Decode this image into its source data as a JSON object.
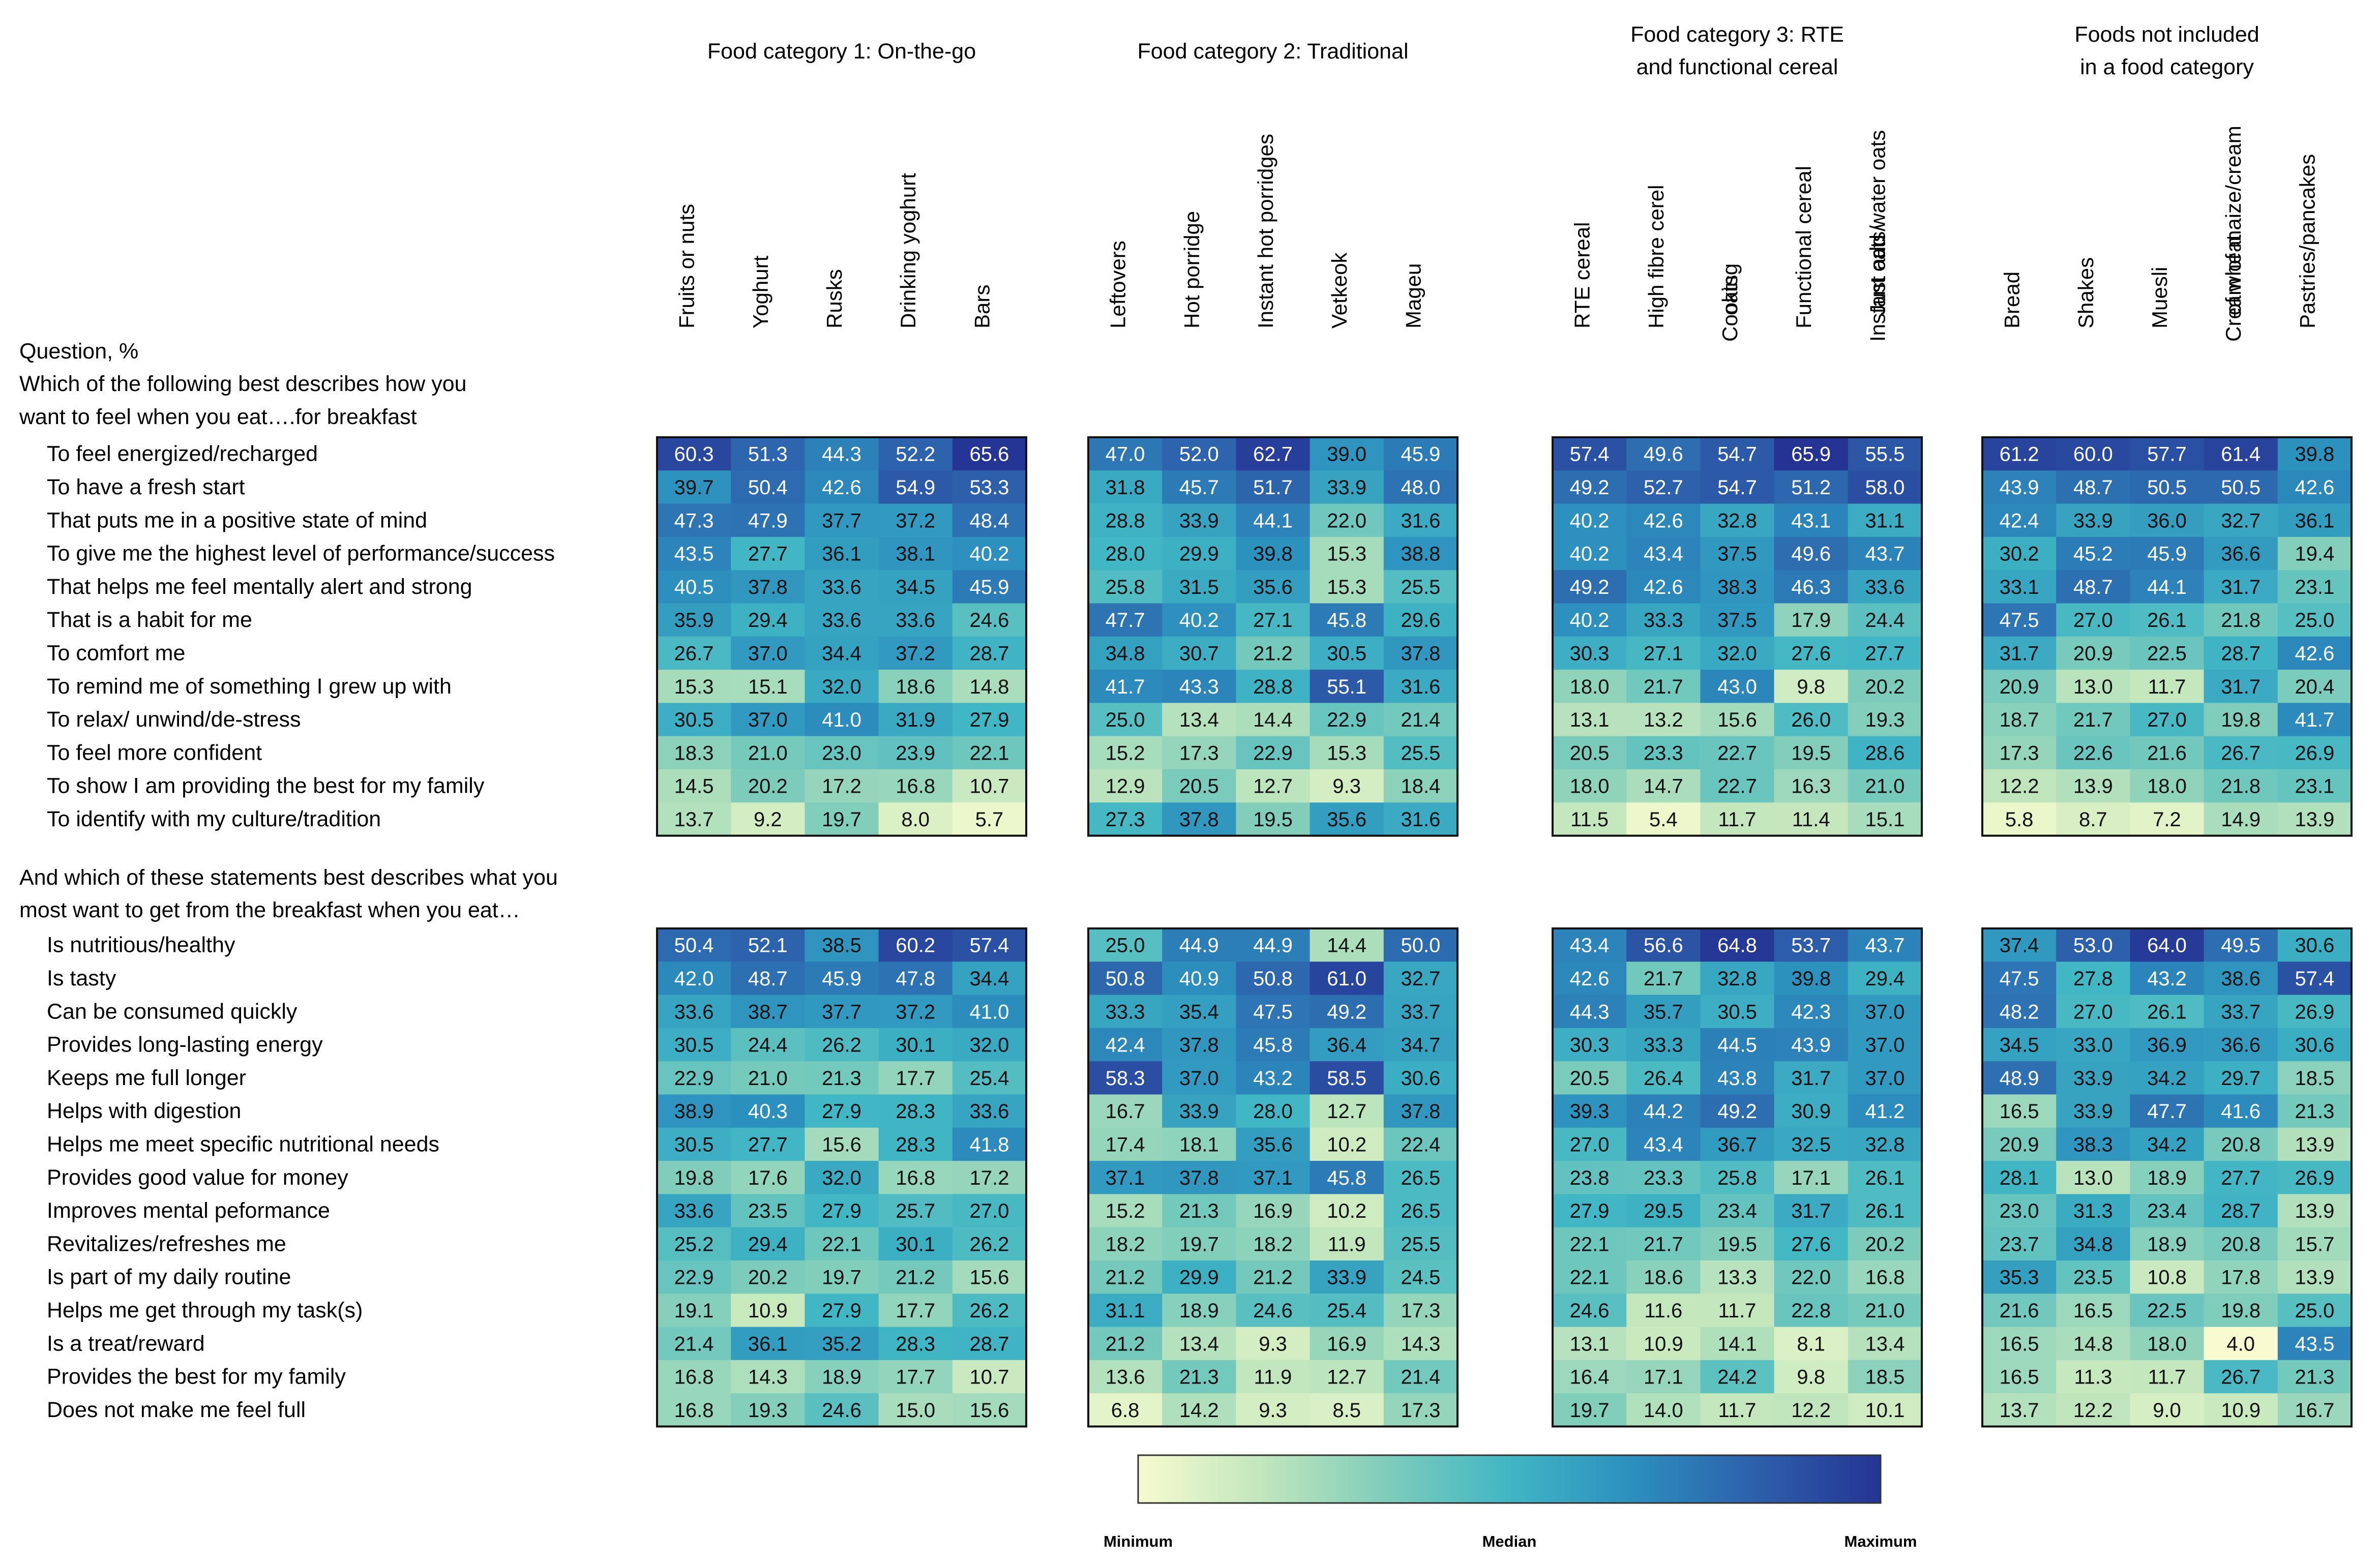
{
  "chart_data": {
    "type": "heatmap",
    "row_header": "Question, %",
    "groups": [
      {
        "label": "Food category 1: On-the-go",
        "columns": [
          "Fruits or nuts",
          "Yoghurt",
          "Rusks",
          "Drinking yoghurt",
          "Bars"
        ]
      },
      {
        "label": "Food category 2: Traditional",
        "columns": [
          "Leftovers",
          "Hot porridge",
          "Instant hot porridges",
          "Vetkeok",
          "Mageu"
        ]
      },
      {
        "label": "Food category 3: RTE and functional cereal",
        "columns": [
          "RTE cereal",
          "High fibre cerel",
          "Cooking oats",
          "Functional cereal",
          "Instant oats/ Just add  water oats"
        ]
      },
      {
        "label": "Foods not included in a food category",
        "columns": [
          "Bread",
          "Shakes",
          "Muesli",
          "Cream of maize/cream of wheat",
          "Pastries/pancakes"
        ]
      }
    ],
    "sections": [
      {
        "question": "Which of the following best describes how you want to feel when you eat….for breakfast",
        "rows": [
          {
            "label": "To feel energized/recharged",
            "values": [
              60.3,
              51.3,
              44.3,
              52.2,
              65.6,
              47.0,
              52.0,
              62.7,
              39.0,
              45.9,
              57.4,
              49.6,
              54.7,
              65.9,
              55.5,
              61.2,
              60.0,
              57.7,
              61.4,
              39.8
            ]
          },
          {
            "label": "To have a fresh start",
            "values": [
              39.7,
              50.4,
              42.6,
              54.9,
              53.3,
              31.8,
              45.7,
              51.7,
              33.9,
              48.0,
              49.2,
              52.7,
              54.7,
              51.2,
              58.0,
              43.9,
              48.7,
              50.5,
              50.5,
              42.6
            ]
          },
          {
            "label": "That puts me in a positive state of mind",
            "values": [
              47.3,
              47.9,
              37.7,
              37.2,
              48.4,
              28.8,
              33.9,
              44.1,
              22.0,
              31.6,
              40.2,
              42.6,
              32.8,
              43.1,
              31.1,
              42.4,
              33.9,
              36.0,
              32.7,
              36.1
            ]
          },
          {
            "label": "To give me the highest level of performance/success",
            "values": [
              43.5,
              27.7,
              36.1,
              38.1,
              40.2,
              28.0,
              29.9,
              39.8,
              15.3,
              38.8,
              40.2,
              43.4,
              37.5,
              49.6,
              43.7,
              30.2,
              45.2,
              45.9,
              36.6,
              19.4
            ]
          },
          {
            "label": "That helps me feel mentally alert and strong",
            "values": [
              40.5,
              37.8,
              33.6,
              34.5,
              45.9,
              25.8,
              31.5,
              35.6,
              15.3,
              25.5,
              49.2,
              42.6,
              38.3,
              46.3,
              33.6,
              33.1,
              48.7,
              44.1,
              31.7,
              23.1
            ]
          },
          {
            "label": "That is a habit for me",
            "values": [
              35.9,
              29.4,
              33.6,
              33.6,
              24.6,
              47.7,
              40.2,
              27.1,
              45.8,
              29.6,
              40.2,
              33.3,
              37.5,
              17.9,
              24.4,
              47.5,
              27.0,
              26.1,
              21.8,
              25.0
            ]
          },
          {
            "label": "To comfort me",
            "values": [
              26.7,
              37.0,
              34.4,
              37.2,
              28.7,
              34.8,
              30.7,
              21.2,
              30.5,
              37.8,
              30.3,
              27.1,
              32.0,
              27.6,
              27.7,
              31.7,
              20.9,
              22.5,
              28.7,
              42.6
            ]
          },
          {
            "label": "To remind me of something I grew up with",
            "values": [
              15.3,
              15.1,
              32.0,
              18.6,
              14.8,
              41.7,
              43.3,
              28.8,
              55.1,
              31.6,
              18.0,
              21.7,
              43.0,
              9.8,
              20.2,
              20.9,
              13.0,
              11.7,
              31.7,
              20.4
            ]
          },
          {
            "label": "To relax/ unwind/de-stress",
            "values": [
              30.5,
              37.0,
              41.0,
              31.9,
              27.9,
              25.0,
              13.4,
              14.4,
              22.9,
              21.4,
              13.1,
              13.2,
              15.6,
              26.0,
              19.3,
              18.7,
              21.7,
              27.0,
              19.8,
              41.7
            ]
          },
          {
            "label": "To feel more confident",
            "values": [
              18.3,
              21.0,
              23.0,
              23.9,
              22.1,
              15.2,
              17.3,
              22.9,
              15.3,
              25.5,
              20.5,
              23.3,
              22.7,
              19.5,
              28.6,
              17.3,
              22.6,
              21.6,
              26.7,
              26.9
            ]
          },
          {
            "label": "To show I am providing the best for my family",
            "values": [
              14.5,
              20.2,
              17.2,
              16.8,
              10.7,
              12.9,
              20.5,
              12.7,
              9.3,
              18.4,
              18.0,
              14.7,
              22.7,
              16.3,
              21.0,
              12.2,
              13.9,
              18.0,
              21.8,
              23.1
            ]
          },
          {
            "label": "To identify with my culture/tradition",
            "values": [
              13.7,
              9.2,
              19.7,
              8.0,
              5.7,
              27.3,
              37.8,
              19.5,
              35.6,
              31.6,
              11.5,
              5.4,
              11.7,
              11.4,
              15.1,
              5.8,
              8.7,
              7.2,
              14.9,
              13.9
            ]
          }
        ]
      },
      {
        "question": "And which of these statements best describes what you most want to get from the breakfast when you eat…",
        "rows": [
          {
            "label": "Is nutritious/healthy",
            "values": [
              50.4,
              52.1,
              38.5,
              60.2,
              57.4,
              25.0,
              44.9,
              44.9,
              14.4,
              50.0,
              43.4,
              56.6,
              64.8,
              53.7,
              43.7,
              37.4,
              53.0,
              64.0,
              49.5,
              30.6
            ]
          },
          {
            "label": "Is tasty",
            "values": [
              42.0,
              48.7,
              45.9,
              47.8,
              34.4,
              50.8,
              40.9,
              50.8,
              61.0,
              32.7,
              42.6,
              21.7,
              32.8,
              39.8,
              29.4,
              47.5,
              27.8,
              43.2,
              38.6,
              57.4
            ]
          },
          {
            "label": "Can be consumed quickly",
            "values": [
              33.6,
              38.7,
              37.7,
              37.2,
              41.0,
              33.3,
              35.4,
              47.5,
              49.2,
              33.7,
              44.3,
              35.7,
              30.5,
              42.3,
              37.0,
              48.2,
              27.0,
              26.1,
              33.7,
              26.9
            ]
          },
          {
            "label": "Provides long-lasting energy",
            "values": [
              30.5,
              24.4,
              26.2,
              30.1,
              32.0,
              42.4,
              37.8,
              45.8,
              36.4,
              34.7,
              30.3,
              33.3,
              44.5,
              43.9,
              37.0,
              34.5,
              33.0,
              36.9,
              36.6,
              30.6
            ]
          },
          {
            "label": "Keeps me full longer",
            "values": [
              22.9,
              21.0,
              21.3,
              17.7,
              25.4,
              58.3,
              37.0,
              43.2,
              58.5,
              30.6,
              20.5,
              26.4,
              43.8,
              31.7,
              37.0,
              48.9,
              33.9,
              34.2,
              29.7,
              18.5
            ]
          },
          {
            "label": "Helps with digestion",
            "values": [
              38.9,
              40.3,
              27.9,
              28.3,
              33.6,
              16.7,
              33.9,
              28.0,
              12.7,
              37.8,
              39.3,
              44.2,
              49.2,
              30.9,
              41.2,
              16.5,
              33.9,
              47.7,
              41.6,
              21.3
            ]
          },
          {
            "label": "Helps me meet specific nutritional needs",
            "values": [
              30.5,
              27.7,
              15.6,
              28.3,
              41.8,
              17.4,
              18.1,
              35.6,
              10.2,
              22.4,
              27.0,
              43.4,
              36.7,
              32.5,
              32.8,
              20.9,
              38.3,
              34.2,
              20.8,
              13.9
            ]
          },
          {
            "label": "Provides good value for money",
            "values": [
              19.8,
              17.6,
              32.0,
              16.8,
              17.2,
              37.1,
              37.8,
              37.1,
              45.8,
              26.5,
              23.8,
              23.3,
              25.8,
              17.1,
              26.1,
              28.1,
              13.0,
              18.9,
              27.7,
              26.9
            ]
          },
          {
            "label": "Improves mental peformance",
            "values": [
              33.6,
              23.5,
              27.9,
              25.7,
              27.0,
              15.2,
              21.3,
              16.9,
              10.2,
              26.5,
              27.9,
              29.5,
              23.4,
              31.7,
              26.1,
              23.0,
              31.3,
              23.4,
              28.7,
              13.9
            ]
          },
          {
            "label": "Revitalizes/refreshes me",
            "values": [
              25.2,
              29.4,
              22.1,
              30.1,
              26.2,
              18.2,
              19.7,
              18.2,
              11.9,
              25.5,
              22.1,
              21.7,
              19.5,
              27.6,
              20.2,
              23.7,
              34.8,
              18.9,
              20.8,
              15.7
            ]
          },
          {
            "label": "Is part of my daily routine",
            "values": [
              22.9,
              20.2,
              19.7,
              21.2,
              15.6,
              21.2,
              29.9,
              21.2,
              33.9,
              24.5,
              22.1,
              18.6,
              13.3,
              22.0,
              16.8,
              35.3,
              23.5,
              10.8,
              17.8,
              13.9
            ]
          },
          {
            "label": "Helps me get through my task(s)",
            "values": [
              19.1,
              10.9,
              27.9,
              17.7,
              26.2,
              31.1,
              18.9,
              24.6,
              25.4,
              17.3,
              24.6,
              11.6,
              11.7,
              22.8,
              21.0,
              21.6,
              16.5,
              22.5,
              19.8,
              25.0
            ]
          },
          {
            "label": "Is a treat/reward",
            "values": [
              21.4,
              36.1,
              35.2,
              28.3,
              28.7,
              21.2,
              13.4,
              9.3,
              16.9,
              14.3,
              13.1,
              10.9,
              14.1,
              8.1,
              13.4,
              16.5,
              14.8,
              18.0,
              4.0,
              43.5
            ]
          },
          {
            "label": "Provides the best for my family",
            "values": [
              16.8,
              14.3,
              18.9,
              17.7,
              10.7,
              13.6,
              21.3,
              11.9,
              12.7,
              21.4,
              16.4,
              17.1,
              24.2,
              9.8,
              18.5,
              16.5,
              11.3,
              11.7,
              26.7,
              21.3
            ]
          },
          {
            "label": "Does not make me feel full",
            "values": [
              16.8,
              19.3,
              24.6,
              15.0,
              15.6,
              6.8,
              14.2,
              9.3,
              8.5,
              17.3,
              19.7,
              14.0,
              11.7,
              12.2,
              10.1,
              13.7,
              12.2,
              9.0,
              10.9,
              16.7
            ]
          }
        ]
      }
    ],
    "legend": {
      "min_label": "Minimum",
      "median_label": "Median",
      "max_label": "Maximum",
      "colors": [
        "#f7fbcf",
        "#c2e6bd",
        "#7fcdbb",
        "#41b6c4",
        "#2c8fbe",
        "#2d5fab",
        "#253494"
      ]
    }
  }
}
